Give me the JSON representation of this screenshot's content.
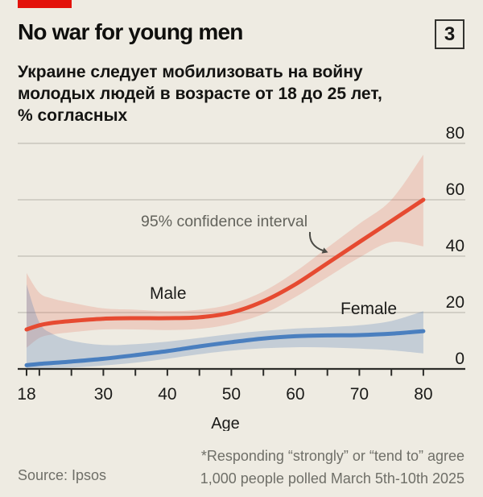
{
  "header": {
    "tag_color": "#e3120b",
    "title": "No war for young men",
    "index_label": "3",
    "subtitle_lines": [
      "Украине следует мобилизовать на войну",
      "молодых людей в возрасте от 18 до 25 лет,",
      "% согласных"
    ]
  },
  "chart_data": {
    "type": "line",
    "xlabel": "Age",
    "xlim": [
      18,
      80
    ],
    "ylim": [
      0,
      80
    ],
    "grid": true,
    "y_ticks": [
      0,
      20,
      40,
      60,
      80
    ],
    "x_major_ticks": [
      18,
      30,
      40,
      50,
      60,
      70,
      80
    ],
    "x_minor_ticks": [
      20,
      25,
      35,
      45,
      55,
      65,
      75
    ],
    "annotation": {
      "text": "95% confidence interval"
    },
    "x": [
      18,
      20,
      22,
      25,
      30,
      35,
      40,
      45,
      50,
      55,
      60,
      65,
      70,
      75,
      80
    ],
    "series": [
      {
        "name": "Male",
        "color": "#e64a31",
        "band_color": "rgba(230,80,48,0.18)",
        "values": [
          14,
          15.5,
          16.3,
          17,
          17.8,
          18,
          18,
          18.3,
          20,
          24,
          30,
          37.5,
          45,
          52.5,
          60
        ],
        "ci_low": [
          7.5,
          11,
          12.2,
          13,
          14,
          14,
          13.8,
          14.2,
          16,
          19.5,
          25.5,
          32.5,
          39.5,
          45,
          43.5
        ],
        "ci_high": [
          34,
          27,
          25,
          23.5,
          21.5,
          21,
          20.5,
          21,
          23,
          27.5,
          34.5,
          43,
          51.5,
          60,
          76
        ]
      },
      {
        "name": "Female",
        "color": "#4a7fbf",
        "band_color": "rgba(85,125,180,0.27)",
        "values": [
          1.3,
          1.8,
          2.1,
          2.6,
          3.6,
          4.9,
          6.3,
          8,
          9.5,
          10.8,
          11.6,
          11.9,
          12,
          12.5,
          13.4
        ],
        "ci_low": [
          0.2,
          0.2,
          0.3,
          0.5,
          1.2,
          2.2,
          3.6,
          5.2,
          6.5,
          7.3,
          7.7,
          7.6,
          7.2,
          6.6,
          5.5
        ],
        "ci_high": [
          30,
          16.5,
          12.5,
          10,
          8.5,
          8.8,
          9.7,
          11,
          12.4,
          13.5,
          14.3,
          14.8,
          15.5,
          17,
          20.5
        ]
      }
    ],
    "colors": {
      "background": "#eeebe2",
      "grid": "#c9c6bd",
      "axis": "#2c2c29",
      "text_dark": "#1b1b19",
      "text_grey": "#63635c"
    }
  },
  "footer": {
    "source": "Source: Ipsos",
    "note_line1": "*Responding “strongly” or “tend to” agree",
    "note_line2": "1,000 people polled March 5th-10th 2025"
  }
}
